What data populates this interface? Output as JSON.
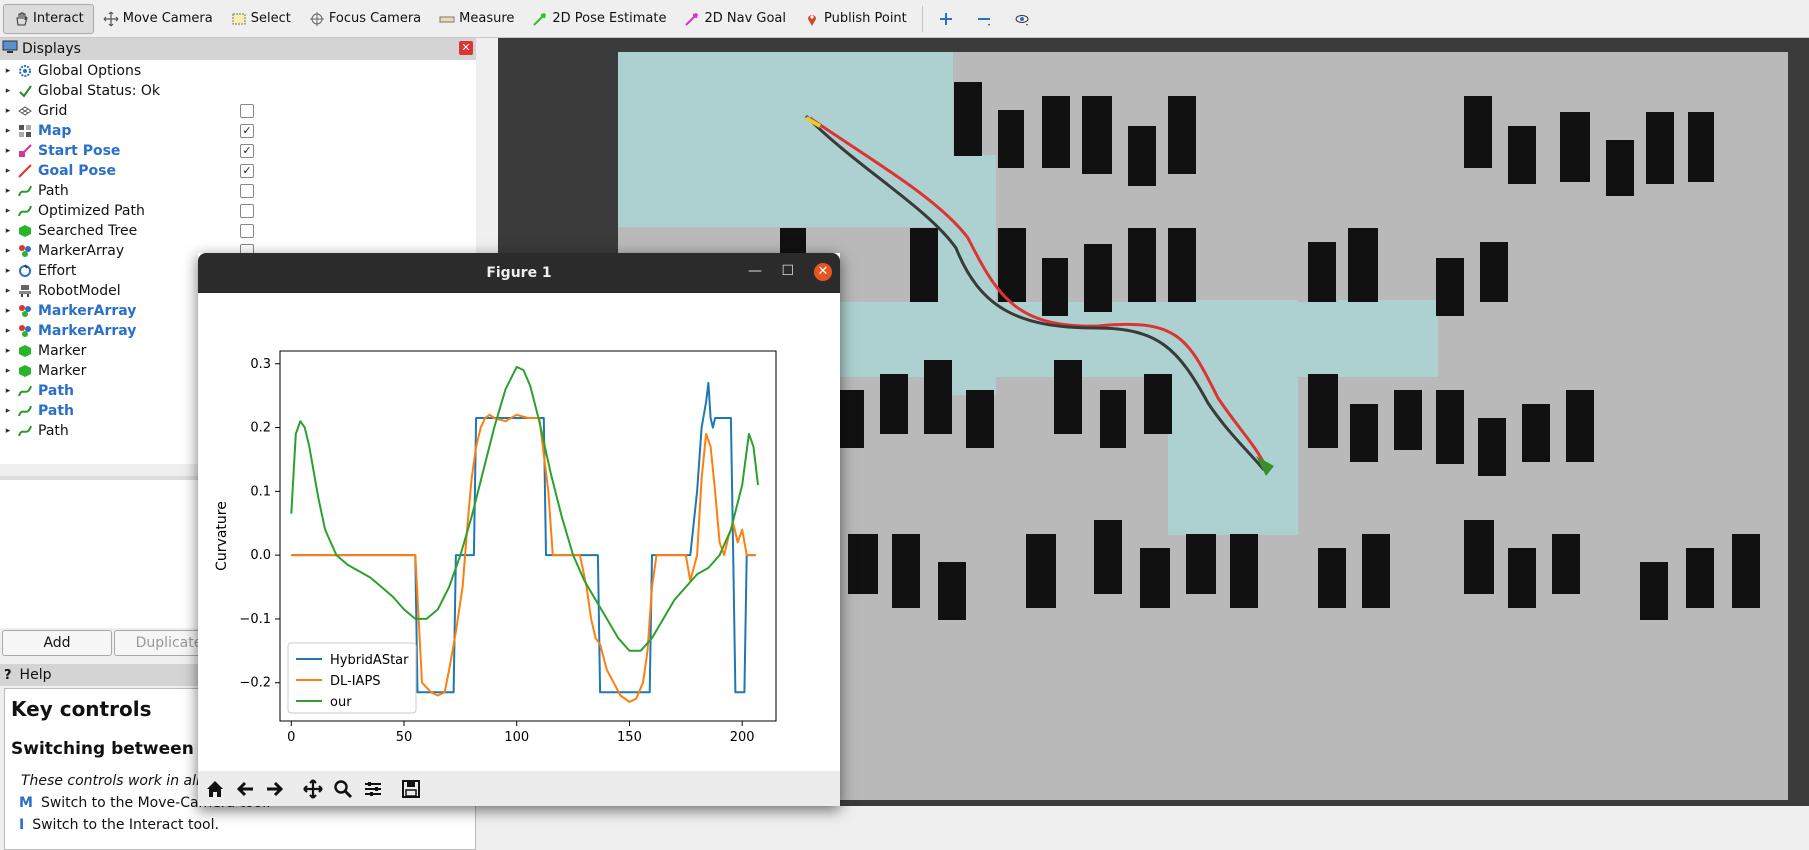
{
  "toolbar": {
    "items": [
      {
        "label": "Interact",
        "icon": "hand-icon"
      },
      {
        "label": "Move Camera",
        "icon": "move-camera-icon"
      },
      {
        "label": "Select",
        "icon": "select-icon"
      },
      {
        "label": "Focus Camera",
        "icon": "focus-camera-icon"
      },
      {
        "label": "Measure",
        "icon": "measure-icon"
      },
      {
        "label": "2D Pose Estimate",
        "icon": "pose-estimate-icon"
      },
      {
        "label": "2D Nav Goal",
        "icon": "nav-goal-icon"
      },
      {
        "label": "Publish Point",
        "icon": "publish-point-icon"
      }
    ]
  },
  "displays": {
    "title": "Displays",
    "items": [
      {
        "label": "Global Options",
        "checked": null,
        "highlight": false,
        "icon": "gear-icon"
      },
      {
        "label": "Global Status: Ok",
        "checked": null,
        "highlight": false,
        "icon": "checkmark-icon"
      },
      {
        "label": "Grid",
        "checked": false,
        "highlight": false,
        "icon": "grid-icon"
      },
      {
        "label": "Map",
        "checked": true,
        "highlight": true,
        "icon": "map-icon"
      },
      {
        "label": "Start Pose",
        "checked": true,
        "highlight": true,
        "icon": "pose-icon"
      },
      {
        "label": "Goal Pose",
        "checked": true,
        "highlight": true,
        "icon": "goal-pose-icon"
      },
      {
        "label": "Path",
        "checked": false,
        "highlight": false,
        "icon": "path-icon"
      },
      {
        "label": "Optimized Path",
        "checked": false,
        "highlight": false,
        "icon": "path-icon"
      },
      {
        "label": "Searched Tree",
        "checked": false,
        "highlight": false,
        "icon": "marker-icon"
      },
      {
        "label": "MarkerArray",
        "checked": false,
        "highlight": false,
        "icon": "marker-array-icon"
      },
      {
        "label": "Effort",
        "checked": null,
        "highlight": false,
        "icon": "effort-icon"
      },
      {
        "label": "RobotModel",
        "checked": null,
        "highlight": false,
        "icon": "robot-model-icon"
      },
      {
        "label": "MarkerArray",
        "checked": null,
        "highlight": true,
        "icon": "marker-array-icon"
      },
      {
        "label": "MarkerArray",
        "checked": null,
        "highlight": true,
        "icon": "marker-array-icon"
      },
      {
        "label": "Marker",
        "checked": null,
        "highlight": false,
        "icon": "marker-icon"
      },
      {
        "label": "Marker",
        "checked": null,
        "highlight": false,
        "icon": "marker-icon"
      },
      {
        "label": "Path",
        "checked": null,
        "highlight": true,
        "icon": "path-icon"
      },
      {
        "label": "Path",
        "checked": null,
        "highlight": true,
        "icon": "path-icon"
      },
      {
        "label": "Path",
        "checked": null,
        "highlight": false,
        "icon": "path-icon"
      }
    ],
    "add_label": "Add",
    "duplicate_label": "Duplicate"
  },
  "help": {
    "title": "Help",
    "heading": "Key controls",
    "subheading": "Switching between tools",
    "note": "These controls work in all modes.",
    "keys": [
      {
        "key": "M",
        "text": "Switch to the Move-Camera tool."
      },
      {
        "key": "I",
        "text": "Switch to the Interact tool."
      }
    ]
  },
  "figure": {
    "title": "Figure 1"
  },
  "colors": {
    "hybrid": "#1f77b4",
    "dliaps": "#ff7f0e",
    "our": "#2ca02c",
    "accent": "#2a6fc9"
  },
  "chart_data": {
    "type": "line",
    "title": "",
    "xlabel": "",
    "ylabel": "Curvature",
    "xlim": [
      -5,
      215
    ],
    "ylim": [
      -0.26,
      0.32
    ],
    "xticks": [
      0,
      50,
      100,
      150,
      200
    ],
    "yticks": [
      -0.2,
      -0.1,
      0.0,
      0.1,
      0.2,
      0.3
    ],
    "legend": "lower-left",
    "series": [
      {
        "name": "HybridAStar",
        "x": [
          0,
          55,
          56,
          72,
          73,
          74,
          75,
          80,
          81,
          82,
          111,
          112,
          113,
          128,
          129,
          130,
          131,
          136,
          137,
          138,
          153,
          159,
          160,
          161,
          162,
          164,
          166,
          177,
          180,
          182,
          184,
          185,
          186,
          187,
          188,
          189,
          190,
          195,
          196,
          197,
          200,
          201,
          202,
          203,
          205,
          206
        ],
        "y": [
          0,
          0,
          -0.215,
          -0.215,
          0,
          0,
          0,
          0,
          0,
          0.215,
          0.215,
          0.215,
          0,
          0,
          0,
          0,
          0,
          0,
          -0.215,
          -0.215,
          -0.215,
          -0.215,
          0,
          0,
          0,
          0,
          0,
          0,
          0.1,
          0.2,
          0.24,
          0.27,
          0.215,
          0.2,
          0.215,
          0.215,
          0.215,
          0.215,
          0,
          -0.215,
          -0.215,
          -0.215,
          0,
          0,
          0,
          0
        ]
      },
      {
        "name": "DL-IAPS",
        "x": [
          0,
          55,
          58,
          62,
          65,
          68,
          70,
          73,
          76,
          78,
          80,
          82,
          84,
          86,
          88,
          90,
          95,
          100,
          105,
          110,
          114,
          116,
          118,
          122,
          125,
          128,
          131,
          133,
          135,
          137,
          140,
          143,
          146,
          150,
          153,
          156,
          158,
          160,
          162,
          165,
          170,
          175,
          177,
          180,
          182,
          184,
          186,
          188,
          190,
          192,
          194,
          196,
          198,
          200,
          202,
          206
        ],
        "y": [
          0,
          0,
          -0.2,
          -0.215,
          -0.22,
          -0.215,
          -0.18,
          -0.12,
          -0.05,
          0.04,
          0.12,
          0.17,
          0.2,
          0.215,
          0.22,
          0.215,
          0.21,
          0.22,
          0.215,
          0.215,
          0.1,
          0,
          0,
          0,
          0,
          0,
          -0.05,
          -0.1,
          -0.13,
          -0.14,
          -0.18,
          -0.2,
          -0.22,
          -0.23,
          -0.225,
          -0.2,
          -0.15,
          -0.05,
          0,
          0,
          0,
          0,
          -0.04,
          0,
          0.12,
          0.19,
          0.17,
          0.1,
          0.02,
          0.0,
          0.03,
          0.05,
          0.02,
          0.04,
          0,
          0
        ]
      },
      {
        "name": "our",
        "x": [
          0,
          2,
          4,
          6,
          8,
          10,
          12,
          15,
          20,
          25,
          30,
          35,
          40,
          45,
          50,
          55,
          60,
          65,
          70,
          75,
          80,
          85,
          90,
          95,
          100,
          103,
          106,
          110,
          115,
          120,
          125,
          130,
          135,
          140,
          145,
          150,
          155,
          160,
          165,
          170,
          175,
          180,
          185,
          190,
          195,
          200,
          203,
          205,
          207
        ],
        "y": [
          0.065,
          0.19,
          0.21,
          0.2,
          0.17,
          0.13,
          0.09,
          0.04,
          0.0,
          -0.015,
          -0.025,
          -0.035,
          -0.05,
          -0.065,
          -0.085,
          -0.1,
          -0.1,
          -0.085,
          -0.05,
          -0.0,
          0.06,
          0.13,
          0.2,
          0.26,
          0.295,
          0.29,
          0.265,
          0.21,
          0.13,
          0.06,
          0.0,
          -0.04,
          -0.07,
          -0.1,
          -0.13,
          -0.15,
          -0.15,
          -0.13,
          -0.1,
          -0.07,
          -0.05,
          -0.03,
          -0.02,
          -0.0,
          0.04,
          0.11,
          0.19,
          0.17,
          0.11
        ]
      }
    ]
  }
}
